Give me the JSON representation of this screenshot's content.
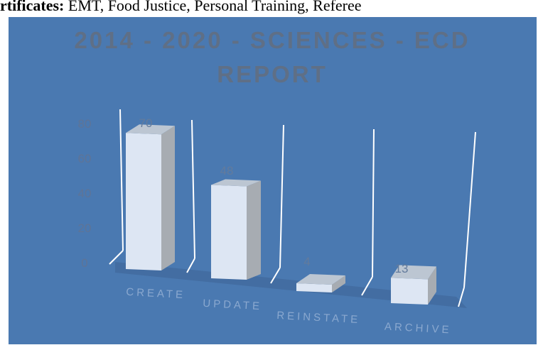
{
  "document": {
    "heading_bold": "rtificates:",
    "heading_rest": " EMT, Food Justice, Personal Training, Referee"
  },
  "chart_data": {
    "type": "bar",
    "title": "2014 - 2020 - SCIENCES - ECD REPORT",
    "title_lines": [
      "2014 - 2020 - SCIENCES - ECD",
      "REPORT"
    ],
    "categories": [
      "CREATE",
      "UPDATE",
      "REINSTATE",
      "ARCHIVE"
    ],
    "values": [
      70,
      48,
      4,
      13
    ],
    "value_labels": [
      "70",
      "48",
      "4",
      "13"
    ],
    "y_ticks": [
      "0",
      "20",
      "40",
      "60",
      "80"
    ],
    "ylim": [
      0,
      80
    ],
    "grid": true,
    "style": "3d-perspective",
    "colors": {
      "background": "#4a79b1",
      "bar_front": "#dde6f3",
      "bar_side": "#a7acb2",
      "bar_top": "#bcc6d2",
      "floor": "#3e6595",
      "grid": "#ffffff",
      "title": "#5f6f86"
    }
  }
}
